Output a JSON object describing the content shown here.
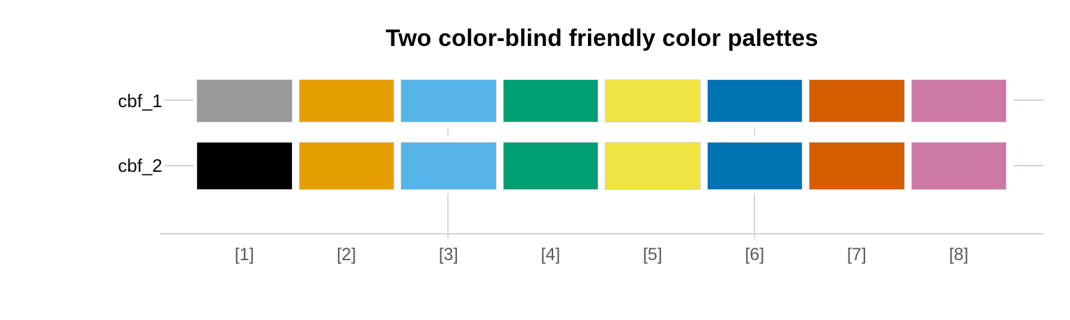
{
  "title": "Two color-blind friendly color palettes",
  "colors": {
    "background": "#ffffff",
    "grid_line": "#d2d2d2",
    "axis_tick_label": "#595959",
    "row_label_text": "#0a0a0a",
    "title_text": "#000000"
  },
  "chart_data": {
    "type": "table",
    "subtype": "color-palette-swatch-grid",
    "title": "Two color-blind friendly color palettes",
    "categories": [
      "[1]",
      "[2]",
      "[3]",
      "[4]",
      "[5]",
      "[6]",
      "[7]",
      "[8]"
    ],
    "series": [
      {
        "name": "cbf_1",
        "colors": [
          "#999999",
          "#E69F00",
          "#56B4E9",
          "#009E73",
          "#F0E442",
          "#0072B2",
          "#D55E00",
          "#CC79A7"
        ]
      },
      {
        "name": "cbf_2",
        "colors": [
          "#000000",
          "#E69F00",
          "#56B4E9",
          "#009E73",
          "#F0E442",
          "#0072B2",
          "#D55E00",
          "#CC79A7"
        ]
      }
    ],
    "layout": {
      "legend": "none",
      "background": "#ffffff",
      "x_axis_line": true,
      "vertical_gridlines_at_categories": [
        "[3]",
        "[6]"
      ],
      "row_leader_lines": "left and right of each swatch row"
    }
  }
}
